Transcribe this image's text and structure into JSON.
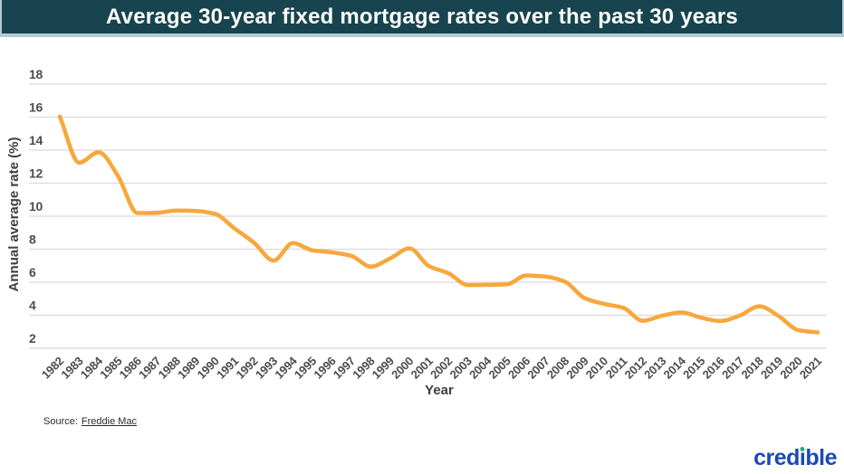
{
  "header": {
    "title": "Average 30-year fixed mortgage rates over the past 30 years"
  },
  "chart_data": {
    "type": "line",
    "title": "Average 30-year fixed mortgage rates over the past 30 years",
    "xlabel": "Year",
    "ylabel": "Annual average rate (%)",
    "x": [
      1982,
      1983,
      1984,
      1985,
      1986,
      1987,
      1988,
      1989,
      1990,
      1991,
      1992,
      1993,
      1994,
      1995,
      1996,
      1997,
      1998,
      1999,
      2000,
      2001,
      2002,
      2003,
      2004,
      2005,
      2006,
      2007,
      2008,
      2009,
      2010,
      2011,
      2012,
      2013,
      2014,
      2015,
      2016,
      2017,
      2018,
      2019,
      2020,
      2021
    ],
    "series": [
      {
        "name": "Average 30-year fixed mortgage rate (%)",
        "color": "#F7A73C",
        "values": [
          16.04,
          13.24,
          13.88,
          12.43,
          10.19,
          10.21,
          10.34,
          10.32,
          10.13,
          9.25,
          8.39,
          7.31,
          8.38,
          7.93,
          7.81,
          7.6,
          6.94,
          7.44,
          8.05,
          6.97,
          6.54,
          5.83,
          5.84,
          5.87,
          6.41,
          6.34,
          6.03,
          5.04,
          4.69,
          4.45,
          3.66,
          3.98,
          4.17,
          3.85,
          3.65,
          3.99,
          4.54,
          3.94,
          3.1,
          2.96
        ]
      }
    ],
    "yticks": [
      18,
      16,
      14,
      12,
      10,
      8,
      6,
      4,
      2
    ],
    "ylim": [
      2,
      18
    ],
    "grid": true,
    "legend": "none"
  },
  "footer": {
    "source_prefix": "Source:",
    "source_link": "Freddie Mac"
  },
  "logo": {
    "before": "cred",
    "i": "ı",
    "after": "ble"
  },
  "colors": {
    "background": "#FFFFFF",
    "header_bg": "#17444E",
    "header_border": "#B5CAD6",
    "header_text": "#FFFFFF",
    "line": "#F7A73C",
    "grid": "#DBDBDB",
    "tick_text": "#4D4D4D",
    "axis_title": "#3F3F3F",
    "source_text": "#2B2B2B",
    "logo_blue": "#1B4AB5",
    "logo_green": "#1DB573"
  }
}
